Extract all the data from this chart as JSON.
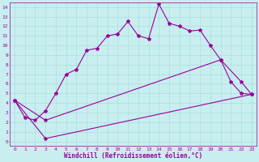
{
  "xlabel": "Windchill (Refroidissement éolien,°C)",
  "line_color": "#990099",
  "bg_color": "#c8eef0",
  "grid_color": "#aadddd",
  "xlim": [
    -0.5,
    23.5
  ],
  "ylim": [
    -0.5,
    14.5
  ],
  "xticks": [
    0,
    1,
    2,
    3,
    4,
    5,
    6,
    7,
    8,
    9,
    10,
    11,
    12,
    13,
    14,
    15,
    16,
    17,
    18,
    19,
    20,
    21,
    22,
    23
  ],
  "yticks": [
    0,
    1,
    2,
    3,
    4,
    5,
    6,
    7,
    8,
    9,
    10,
    11,
    12,
    13,
    14
  ],
  "line1_x": [
    0,
    1,
    2,
    3,
    4,
    5,
    6,
    7,
    8,
    9,
    10,
    11,
    12,
    13,
    14,
    15,
    16,
    17,
    18,
    19,
    20,
    21,
    22,
    23
  ],
  "line1_y": [
    4.3,
    2.5,
    2.2,
    3.2,
    5.0,
    7.0,
    7.5,
    9.5,
    9.7,
    11.0,
    11.2,
    12.5,
    11.0,
    10.7,
    14.3,
    12.3,
    12.0,
    11.5,
    11.6,
    10.0,
    8.5,
    6.2,
    5.0,
    4.9
  ],
  "line2_x": [
    0,
    3,
    20,
    22,
    23
  ],
  "line2_y": [
    4.3,
    2.2,
    8.5,
    6.2,
    4.9
  ],
  "line3_x": [
    0,
    3,
    23
  ],
  "line3_y": [
    4.3,
    0.3,
    4.9
  ],
  "line4_x": [
    0,
    23
  ],
  "line4_y": [
    4.3,
    4.9
  ],
  "marker": "*",
  "markersize": 3,
  "linewidth": 0.8,
  "tick_fontsize": 4.5,
  "xlabel_fontsize": 5.5
}
